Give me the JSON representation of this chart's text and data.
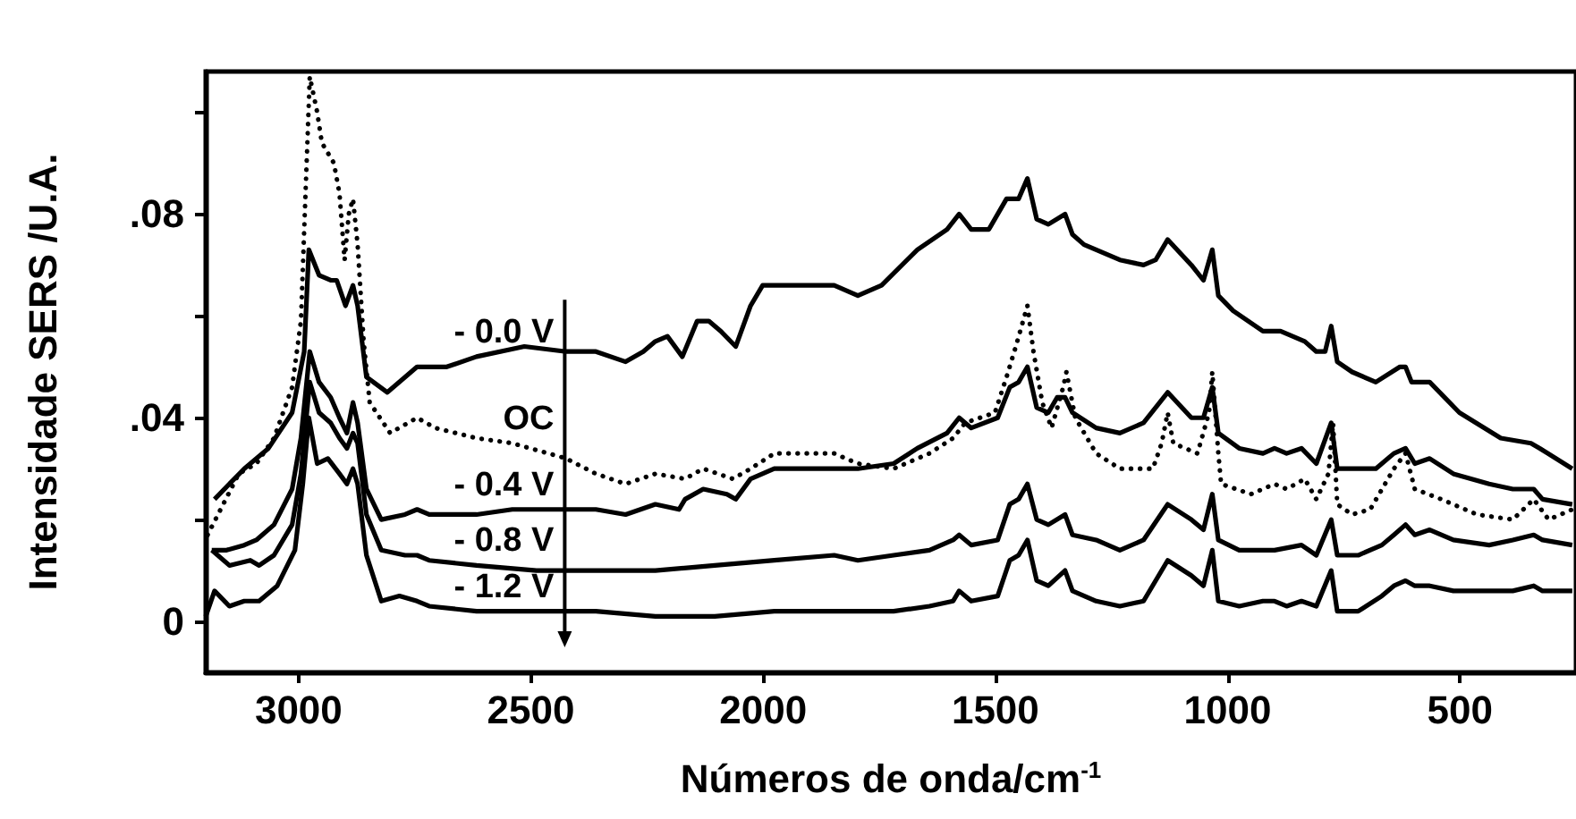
{
  "chart_data": {
    "type": "line",
    "xlabel": "Números de onda/cm$^{-1}$",
    "ylabel": "Intensidade SERS /U.A.",
    "xlim": [
      3200,
      250
    ],
    "xticks": [
      3000,
      2500,
      2000,
      1500,
      1000,
      500
    ],
    "ylim": [
      -0.01,
      0.108
    ],
    "yticks": [
      0,
      {
        "value": 0.02,
        "label": null
      },
      {
        "value": 0.04,
        "label": ".04"
      },
      {
        "value": 0.06,
        "label": null
      },
      {
        "value": 0.08,
        "label": ".08"
      },
      {
        "value": 0.1,
        "label": null
      }
    ],
    "grid": false,
    "legend": false,
    "marker": "none",
    "line_style": "solid",
    "series": [
      {
        "name": "- 0.0 V",
        "color": "#000000",
        "x": [
          3181,
          3117,
          3065,
          3014,
          2988,
          2978,
          2956,
          2931,
          2918,
          2899,
          2883,
          2873,
          2854,
          2809,
          2745,
          2681,
          2617,
          2514,
          2424,
          2360,
          2296,
          2258,
          2232,
          2206,
          2174,
          2142,
          2117,
          2091,
          2059,
          2027,
          2001,
          1950,
          1847,
          1796,
          1745,
          1668,
          1604,
          1578,
          1552,
          1514,
          1476,
          1450,
          1431,
          1411,
          1386,
          1350,
          1334,
          1309,
          1232,
          1181,
          1155,
          1129,
          1078,
          1052,
          1033,
          1020,
          988,
          924,
          886,
          834,
          809,
          790,
          777,
          764,
          732,
          681,
          629,
          617,
          604,
          565,
          501,
          412,
          347,
          328,
          258
        ],
        "values": [
          0.024,
          0.03,
          0.034,
          0.041,
          0.053,
          0.073,
          0.068,
          0.067,
          0.067,
          0.062,
          0.066,
          0.062,
          0.048,
          0.045,
          0.05,
          0.05,
          0.052,
          0.054,
          0.053,
          0.053,
          0.051,
          0.053,
          0.055,
          0.056,
          0.052,
          0.059,
          0.059,
          0.057,
          0.054,
          0.062,
          0.066,
          0.066,
          0.066,
          0.064,
          0.066,
          0.073,
          0.077,
          0.08,
          0.077,
          0.077,
          0.083,
          0.083,
          0.087,
          0.079,
          0.078,
          0.08,
          0.076,
          0.074,
          0.071,
          0.07,
          0.071,
          0.075,
          0.07,
          0.067,
          0.073,
          0.064,
          0.061,
          0.057,
          0.057,
          0.055,
          0.053,
          0.053,
          0.058,
          0.051,
          0.049,
          0.047,
          0.05,
          0.05,
          0.047,
          0.047,
          0.041,
          0.036,
          0.035,
          0.034,
          0.03
        ]
      },
      {
        "name": "OC",
        "color": "#000000",
        "line_style": "dotted",
        "x": [
          3196,
          3168,
          3129,
          3091,
          3053,
          3014,
          2995,
          2986,
          2976,
          2960,
          2950,
          2924,
          2912,
          2901,
          2892,
          2883,
          2873,
          2860,
          2847,
          2803,
          2745,
          2706,
          2617,
          2540,
          2424,
          2360,
          2296,
          2232,
          2168,
          2129,
          2065,
          2027,
          1976,
          1950,
          1847,
          1796,
          1719,
          1642,
          1591,
          1565,
          1501,
          1476,
          1456,
          1431,
          1418,
          1399,
          1379,
          1354,
          1347,
          1328,
          1283,
          1232,
          1161,
          1142,
          1129,
          1117,
          1065,
          1040,
          1033,
          1020,
          1014,
          950,
          899,
          873,
          834,
          809,
          783,
          773,
          764,
          732,
          693,
          642,
          617,
          597,
          540,
          463,
          386,
          341,
          309,
          258
        ],
        "values": [
          0.017,
          0.022,
          0.029,
          0.031,
          0.036,
          0.046,
          0.059,
          0.082,
          0.107,
          0.1,
          0.094,
          0.09,
          0.084,
          0.071,
          0.08,
          0.083,
          0.074,
          0.055,
          0.043,
          0.037,
          0.04,
          0.038,
          0.036,
          0.035,
          0.032,
          0.029,
          0.027,
          0.029,
          0.028,
          0.03,
          0.028,
          0.03,
          0.033,
          0.033,
          0.033,
          0.031,
          0.03,
          0.033,
          0.036,
          0.039,
          0.041,
          0.048,
          0.054,
          0.062,
          0.053,
          0.043,
          0.038,
          0.046,
          0.049,
          0.04,
          0.033,
          0.03,
          0.03,
          0.035,
          0.041,
          0.035,
          0.033,
          0.041,
          0.049,
          0.033,
          0.027,
          0.025,
          0.027,
          0.026,
          0.028,
          0.024,
          0.029,
          0.039,
          0.023,
          0.021,
          0.022,
          0.03,
          0.033,
          0.026,
          0.024,
          0.021,
          0.02,
          0.024,
          0.02,
          0.022
        ]
      },
      {
        "name": "- 0.4 V",
        "color": "#000000",
        "x": [
          3187,
          3155,
          3117,
          3091,
          3053,
          3014,
          2995,
          2976,
          2956,
          2931,
          2912,
          2896,
          2883,
          2873,
          2854,
          2822,
          2771,
          2745,
          2719,
          2617,
          2540,
          2424,
          2360,
          2296,
          2232,
          2181,
          2168,
          2129,
          2078,
          2059,
          2027,
          1976,
          1847,
          1796,
          1719,
          1668,
          1604,
          1578,
          1552,
          1495,
          1469,
          1450,
          1431,
          1411,
          1386,
          1367,
          1350,
          1334,
          1283,
          1232,
          1181,
          1129,
          1078,
          1052,
          1033,
          1020,
          975,
          924,
          899,
          873,
          841,
          809,
          777,
          764,
          719,
          681,
          642,
          617,
          597,
          565,
          514,
          437,
          386,
          341,
          322,
          258
        ],
        "values": [
          0.014,
          0.014,
          0.015,
          0.016,
          0.019,
          0.026,
          0.036,
          0.053,
          0.047,
          0.044,
          0.04,
          0.037,
          0.043,
          0.039,
          0.026,
          0.02,
          0.021,
          0.022,
          0.021,
          0.021,
          0.022,
          0.022,
          0.022,
          0.021,
          0.023,
          0.022,
          0.024,
          0.026,
          0.025,
          0.024,
          0.028,
          0.03,
          0.03,
          0.03,
          0.031,
          0.034,
          0.037,
          0.04,
          0.038,
          0.04,
          0.046,
          0.047,
          0.05,
          0.042,
          0.041,
          0.044,
          0.044,
          0.041,
          0.038,
          0.037,
          0.039,
          0.045,
          0.04,
          0.04,
          0.046,
          0.037,
          0.034,
          0.033,
          0.034,
          0.033,
          0.034,
          0.031,
          0.039,
          0.03,
          0.03,
          0.03,
          0.033,
          0.034,
          0.031,
          0.032,
          0.029,
          0.027,
          0.026,
          0.026,
          0.024,
          0.023
        ]
      },
      {
        "name": "- 0.8 V",
        "color": "#000000",
        "x": [
          3187,
          3149,
          3104,
          3085,
          3053,
          3014,
          2995,
          2976,
          2956,
          2931,
          2912,
          2896,
          2883,
          2873,
          2854,
          2822,
          2771,
          2745,
          2719,
          2617,
          2488,
          2360,
          2232,
          2104,
          1976,
          1847,
          1796,
          1719,
          1642,
          1591,
          1578,
          1552,
          1495,
          1469,
          1450,
          1431,
          1411,
          1386,
          1350,
          1334,
          1283,
          1232,
          1181,
          1129,
          1078,
          1052,
          1033,
          1020,
          975,
          899,
          841,
          809,
          777,
          764,
          719,
          668,
          642,
          617,
          597,
          565,
          514,
          437,
          386,
          341,
          322,
          258
        ],
        "values": [
          0.014,
          0.011,
          0.012,
          0.011,
          0.013,
          0.019,
          0.029,
          0.047,
          0.041,
          0.039,
          0.036,
          0.034,
          0.037,
          0.035,
          0.021,
          0.014,
          0.013,
          0.013,
          0.012,
          0.011,
          0.01,
          0.01,
          0.01,
          0.011,
          0.012,
          0.013,
          0.012,
          0.013,
          0.014,
          0.016,
          0.017,
          0.015,
          0.016,
          0.023,
          0.024,
          0.027,
          0.02,
          0.019,
          0.021,
          0.017,
          0.016,
          0.014,
          0.016,
          0.023,
          0.02,
          0.018,
          0.025,
          0.016,
          0.014,
          0.014,
          0.015,
          0.013,
          0.02,
          0.013,
          0.013,
          0.015,
          0.017,
          0.019,
          0.017,
          0.018,
          0.016,
          0.015,
          0.016,
          0.017,
          0.016,
          0.015
        ]
      },
      {
        "name": "- 1.2 V",
        "color": "#000000",
        "x": [
          3200,
          3181,
          3149,
          3117,
          3085,
          3046,
          3008,
          2991,
          2978,
          2960,
          2937,
          2912,
          2896,
          2883,
          2873,
          2854,
          2822,
          2783,
          2745,
          2719,
          2617,
          2488,
          2360,
          2232,
          2104,
          1976,
          1847,
          1796,
          1719,
          1642,
          1591,
          1578,
          1552,
          1495,
          1469,
          1450,
          1431,
          1411,
          1386,
          1350,
          1334,
          1283,
          1232,
          1181,
          1129,
          1078,
          1052,
          1033,
          1020,
          975,
          924,
          899,
          873,
          841,
          809,
          777,
          764,
          719,
          668,
          642,
          617,
          597,
          565,
          514,
          437,
          386,
          341,
          322,
          258
        ],
        "values": [
          0.001,
          0.006,
          0.003,
          0.004,
          0.004,
          0.007,
          0.014,
          0.027,
          0.04,
          0.031,
          0.032,
          0.029,
          0.027,
          0.03,
          0.027,
          0.013,
          0.004,
          0.005,
          0.004,
          0.003,
          0.002,
          0.002,
          0.002,
          0.001,
          0.001,
          0.002,
          0.002,
          0.002,
          0.002,
          0.003,
          0.004,
          0.006,
          0.004,
          0.005,
          0.012,
          0.013,
          0.016,
          0.008,
          0.007,
          0.01,
          0.006,
          0.004,
          0.003,
          0.004,
          0.012,
          0.009,
          0.007,
          0.014,
          0.004,
          0.003,
          0.004,
          0.004,
          0.003,
          0.004,
          0.003,
          0.01,
          0.002,
          0.002,
          0.005,
          0.007,
          0.008,
          0.007,
          0.007,
          0.006,
          0.006,
          0.006,
          0.007,
          0.006,
          0.006
        ]
      }
    ]
  }
}
